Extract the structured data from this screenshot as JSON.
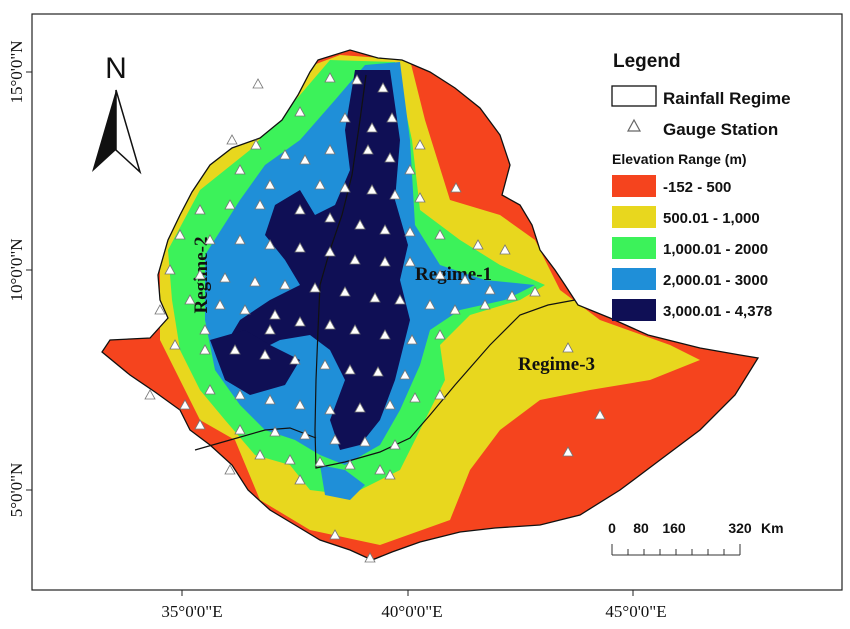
{
  "map": {
    "north_label": "N",
    "axes": {
      "lat_labels": [
        "15°0'0\"N",
        "10°0'0\"N",
        "5°0'0\"N"
      ],
      "lon_labels": [
        "35°0'0\"E",
        "40°0'0\"E",
        "45°0'0\"E"
      ]
    },
    "regimes": [
      "Regime-1",
      "Regime-2",
      "Regime-3"
    ],
    "legend": {
      "title": "Legend",
      "rainfall_regime": "Rainfall Regime",
      "gauge_station": "Gauge Station",
      "elevation_title": "Elevation Range (m)",
      "elevation_classes": [
        {
          "label": "-152 - 500",
          "color": "#f5441e"
        },
        {
          "label": "500.01 - 1,000",
          "color": "#e8d71e"
        },
        {
          "label": "1,000.01 - 2000",
          "color": "#3cf25a"
        },
        {
          "label": "2,000.01 - 3000",
          "color": "#1f8fd8"
        },
        {
          "label": "3,000.01 - 4,378",
          "color": "#0f0f55"
        }
      ]
    },
    "scale_bar": {
      "ticks": [
        "0",
        "80",
        "160",
        "320"
      ],
      "unit": "Km"
    },
    "gauge_color": "#ffffff"
  }
}
